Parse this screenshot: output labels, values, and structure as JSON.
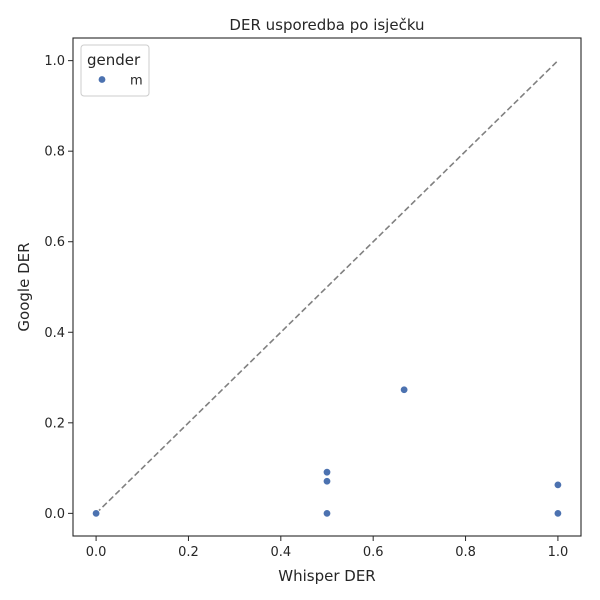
{
  "chart_data": {
    "type": "scatter",
    "title": "DER usporedba po isječku",
    "xlabel": "Whisper DER",
    "ylabel": "Google DER",
    "xlim": [
      -0.05,
      1.05
    ],
    "ylim": [
      -0.05,
      1.05
    ],
    "x_ticks": [
      "0.0",
      "0.2",
      "0.4",
      "0.6",
      "0.8",
      "1.0"
    ],
    "y_ticks": [
      "0.0",
      "0.2",
      "0.4",
      "0.6",
      "0.8",
      "1.0"
    ],
    "grid": false,
    "legend": {
      "title": "gender",
      "placement": "top-left",
      "entries": [
        "m"
      ]
    },
    "series": [
      {
        "name": "m",
        "color": "#4c72b0",
        "points": [
          {
            "x": 0.0,
            "y": 0.0
          },
          {
            "x": 0.5,
            "y": 0.0
          },
          {
            "x": 0.5,
            "y": 0.071
          },
          {
            "x": 0.5,
            "y": 0.091
          },
          {
            "x": 0.667,
            "y": 0.273
          },
          {
            "x": 1.0,
            "y": 0.0
          },
          {
            "x": 1.0,
            "y": 0.063
          }
        ]
      }
    ],
    "reference_line": {
      "x": [
        0,
        1
      ],
      "y": [
        0,
        1
      ],
      "style": "dashed",
      "color": "#808080"
    }
  }
}
